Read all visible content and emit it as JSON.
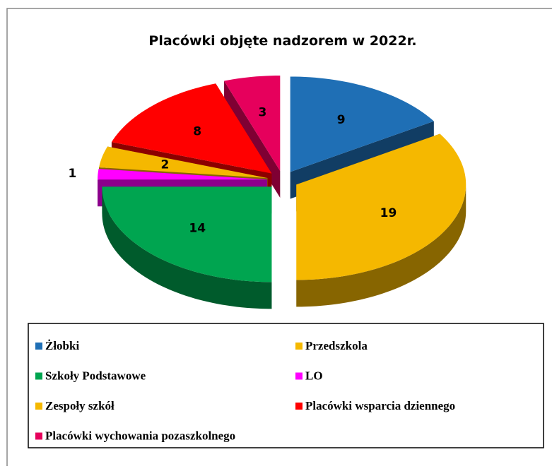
{
  "chart_data": {
    "type": "pie3d",
    "title": "Placówki objęte nadzorem w 2022r.",
    "categories": [
      "Żłobki",
      "Przedszkola",
      "Szkoły Podstawowe",
      "LO",
      "Zespoły szkół",
      "Placówki wsparcia dziennego",
      "Placówki wychowania pozaszkolnego"
    ],
    "values": [
      9,
      19,
      14,
      1,
      2,
      8,
      3
    ],
    "colors": [
      "#1f6fb5",
      "#f5b800",
      "#00a550",
      "#ff00ff",
      "#f5b800",
      "#ff0000",
      "#e6005c"
    ],
    "legend": "bottom"
  }
}
